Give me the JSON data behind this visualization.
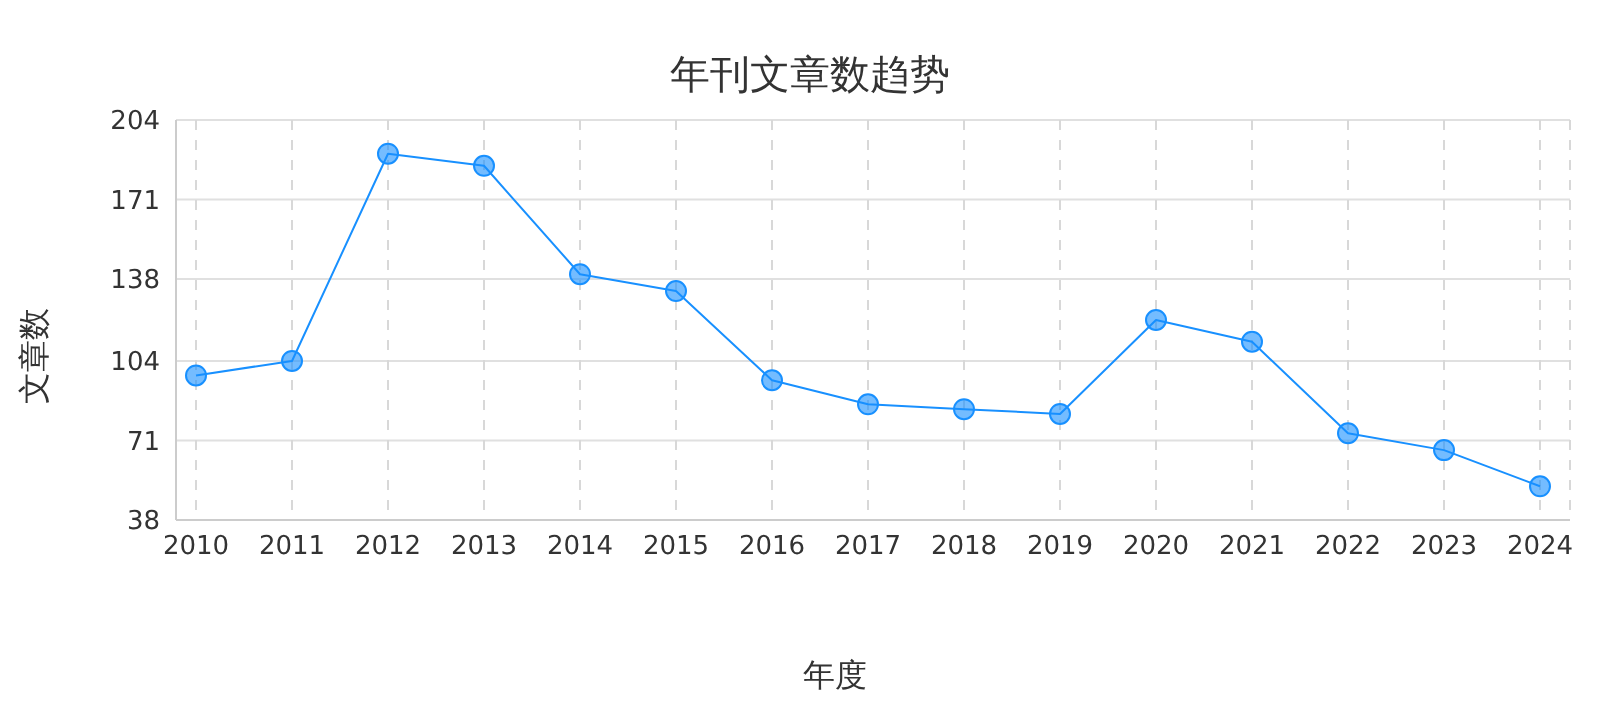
{
  "chart_data": {
    "type": "line",
    "title": "年刊文章数趋势",
    "xlabel": "年度",
    "ylabel": "文章数",
    "categories": [
      "2010",
      "2011",
      "2012",
      "2013",
      "2014",
      "2015",
      "2016",
      "2017",
      "2018",
      "2019",
      "2020",
      "2021",
      "2022",
      "2023",
      "2024"
    ],
    "series": [
      {
        "color": "#1890ff",
        "values": [
          98,
          104,
          190,
          185,
          140,
          133,
          96,
          86,
          84,
          82,
          121,
          112,
          74,
          67,
          52
        ]
      }
    ],
    "ylim": [
      38,
      204
    ],
    "yticks": [
      38,
      71,
      104,
      138,
      171,
      204
    ],
    "grid": true,
    "marker": "circle",
    "line_style": "solid",
    "legend": false
  }
}
